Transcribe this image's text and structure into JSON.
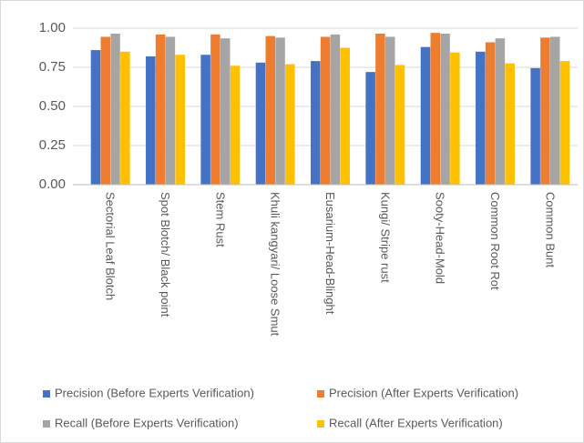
{
  "chart_data": {
    "type": "bar",
    "categories": [
      "Sectorial Leaf Blotch",
      "Spot Blotch/ Black point",
      "Stem Rust",
      "Khuli kangyari/ Loose Smut",
      "Eusarium-Head-Blinght",
      "Kungi/ Stripe rust",
      "Sooty-Head-Mold",
      "Common Root Rot",
      "Common Bunt"
    ],
    "series": [
      {
        "name": "Precision (Before Experts Verification)",
        "color": "#4472c4",
        "values": [
          0.86,
          0.82,
          0.83,
          0.78,
          0.79,
          0.72,
          0.88,
          0.85,
          0.745
        ]
      },
      {
        "name": "Precision (After Experts Verification)",
        "color": "#ed7d31",
        "values": [
          0.945,
          0.96,
          0.96,
          0.95,
          0.945,
          0.965,
          0.97,
          0.91,
          0.94
        ]
      },
      {
        "name": "Recall (Before Experts Verification)",
        "color": "#a5a5a5",
        "values": [
          0.965,
          0.945,
          0.935,
          0.94,
          0.96,
          0.945,
          0.965,
          0.935,
          0.945
        ]
      },
      {
        "name": "Recall (After Experts Verification)",
        "color": "#ffc000",
        "values": [
          0.85,
          0.83,
          0.76,
          0.77,
          0.875,
          0.765,
          0.845,
          0.775,
          0.79
        ]
      }
    ],
    "ylim": [
      0,
      1
    ],
    "yticks": [
      {
        "value": 0,
        "label": "0.00"
      },
      {
        "value": 0.25,
        "label": "0.25"
      },
      {
        "value": 0.5,
        "label": "0.50"
      },
      {
        "value": 0.75,
        "label": "0.75"
      },
      {
        "value": 1,
        "label": "1.00"
      }
    ],
    "grid": true,
    "legend": "bottom"
  }
}
